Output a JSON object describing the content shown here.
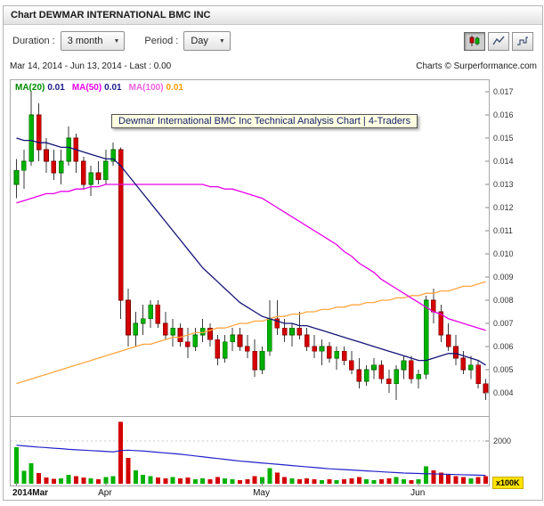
{
  "header": {
    "title": "Chart DEWMAR INTERNATIONAL BMC INC"
  },
  "controls": {
    "duration_label": "Duration :",
    "duration_value": "3 month",
    "period_label": "Period :",
    "period_value": "Day"
  },
  "info_bar": {
    "range_text": "Mar 14, 2014 - Jun 13, 2014 - Last : 0.00",
    "copyright": "Charts © Surperformance.com"
  },
  "tooltip": {
    "text": "Dewmar International BMC Inc Technical Analysis Chart | 4-Traders"
  },
  "legend": {
    "items": [
      {
        "label": "MA(20)",
        "value": "0.01",
        "label_color": "#008a00",
        "value_color": "#1a1a8c"
      },
      {
        "label": "MA(50)",
        "value": "0.01",
        "label_color": "#e800e8",
        "value_color": "#1a1a8c"
      },
      {
        "label": "MA(100)",
        "value": "0.01",
        "label_color": "#f060e0",
        "value_color": "#ff9900"
      }
    ]
  },
  "chart_data": {
    "type": "candlestick",
    "title": "Dewmar International BMC Inc Technical Analysis Chart",
    "date_range": "Mar 14, 2014 - Jun 13, 2014",
    "last": "0.00",
    "y_axis": {
      "min": 0.003,
      "max": 0.0175,
      "ticks": [
        "0.017",
        "0.016",
        "0.015",
        "0.014",
        "0.013",
        "0.012",
        "0.011",
        "0.010",
        "0.009",
        "0.008",
        "0.007",
        "0.006",
        "0.005",
        "0.004"
      ]
    },
    "x_axis": {
      "ticks": [
        {
          "label": "2014Mar",
          "index": 0,
          "bold": true
        },
        {
          "label": "Apr",
          "index": 12
        },
        {
          "label": "May",
          "index": 33
        },
        {
          "label": "Jun",
          "index": 54
        }
      ]
    },
    "colors": {
      "up": "#00b200",
      "up_border": "#006600",
      "down": "#d40000",
      "down_border": "#7a0000",
      "wick": "#3a3a3a"
    },
    "candles": [
      [
        0.013,
        0.0141,
        0.0124,
        0.0136
      ],
      [
        0.0136,
        0.0145,
        0.0128,
        0.014
      ],
      [
        0.014,
        0.017,
        0.0138,
        0.016
      ],
      [
        0.016,
        0.0165,
        0.014,
        0.0145
      ],
      [
        0.0145,
        0.015,
        0.0135,
        0.014
      ],
      [
        0.014,
        0.0145,
        0.0132,
        0.0135
      ],
      [
        0.0135,
        0.0145,
        0.013,
        0.014
      ],
      [
        0.014,
        0.0155,
        0.0138,
        0.015
      ],
      [
        0.015,
        0.0152,
        0.0135,
        0.014
      ],
      [
        0.014,
        0.0142,
        0.0128,
        0.013
      ],
      [
        0.013,
        0.0138,
        0.0125,
        0.0135
      ],
      [
        0.0135,
        0.014,
        0.013,
        0.0132
      ],
      [
        0.0132,
        0.0145,
        0.013,
        0.014
      ],
      [
        0.014,
        0.0148,
        0.0138,
        0.0145
      ],
      [
        0.0145,
        0.0146,
        0.0072,
        0.008
      ],
      [
        0.008,
        0.0085,
        0.006,
        0.0065
      ],
      [
        0.0065,
        0.0075,
        0.006,
        0.007
      ],
      [
        0.007,
        0.0078,
        0.0065,
        0.0072
      ],
      [
        0.0072,
        0.008,
        0.0068,
        0.0078
      ],
      [
        0.0078,
        0.008,
        0.0068,
        0.007
      ],
      [
        0.007,
        0.0075,
        0.0063,
        0.0065
      ],
      [
        0.0065,
        0.0072,
        0.006,
        0.0068
      ],
      [
        0.0068,
        0.007,
        0.006,
        0.0062
      ],
      [
        0.0062,
        0.0068,
        0.0055,
        0.006
      ],
      [
        0.006,
        0.0068,
        0.0058,
        0.0065
      ],
      [
        0.0065,
        0.0072,
        0.0062,
        0.0068
      ],
      [
        0.0068,
        0.007,
        0.006,
        0.0063
      ],
      [
        0.0063,
        0.0065,
        0.0052,
        0.0055
      ],
      [
        0.0055,
        0.0065,
        0.0053,
        0.0062
      ],
      [
        0.0062,
        0.0068,
        0.0058,
        0.0065
      ],
      [
        0.0065,
        0.0068,
        0.0058,
        0.006
      ],
      [
        0.006,
        0.0065,
        0.0055,
        0.0058
      ],
      [
        0.0058,
        0.0063,
        0.0047,
        0.005
      ],
      [
        0.005,
        0.006,
        0.0048,
        0.0058
      ],
      [
        0.0058,
        0.008,
        0.0056,
        0.0072
      ],
      [
        0.0072,
        0.008,
        0.0065,
        0.0068
      ],
      [
        0.0068,
        0.0072,
        0.0062,
        0.0065
      ],
      [
        0.0065,
        0.007,
        0.006,
        0.0068
      ],
      [
        0.0068,
        0.0075,
        0.0063,
        0.0065
      ],
      [
        0.0065,
        0.0068,
        0.0058,
        0.006
      ],
      [
        0.006,
        0.0065,
        0.0055,
        0.0058
      ],
      [
        0.0058,
        0.0063,
        0.0052,
        0.006
      ],
      [
        0.006,
        0.0062,
        0.0053,
        0.0055
      ],
      [
        0.0055,
        0.006,
        0.005,
        0.0058
      ],
      [
        0.0058,
        0.006,
        0.0052,
        0.0054
      ],
      [
        0.0054,
        0.0058,
        0.0048,
        0.005
      ],
      [
        0.005,
        0.0055,
        0.0042,
        0.0045
      ],
      [
        0.0045,
        0.0052,
        0.0043,
        0.005
      ],
      [
        0.005,
        0.0055,
        0.0046,
        0.0052
      ],
      [
        0.0052,
        0.0054,
        0.0044,
        0.0046
      ],
      [
        0.0046,
        0.005,
        0.004,
        0.0044
      ],
      [
        0.0044,
        0.0052,
        0.0037,
        0.005
      ],
      [
        0.005,
        0.0056,
        0.0046,
        0.0054
      ],
      [
        0.0054,
        0.0056,
        0.0044,
        0.0046
      ],
      [
        0.0046,
        0.005,
        0.0042,
        0.0048
      ],
      [
        0.0048,
        0.0082,
        0.0046,
        0.008
      ],
      [
        0.008,
        0.0085,
        0.007,
        0.0075
      ],
      [
        0.0075,
        0.0078,
        0.0062,
        0.0065
      ],
      [
        0.0065,
        0.007,
        0.0058,
        0.006
      ],
      [
        0.006,
        0.0065,
        0.0052,
        0.0055
      ],
      [
        0.0055,
        0.0058,
        0.0048,
        0.005
      ],
      [
        0.005,
        0.0056,
        0.0046,
        0.0052
      ],
      [
        0.0052,
        0.0054,
        0.0042,
        0.0044
      ],
      [
        0.0044,
        0.0046,
        0.0037,
        0.004
      ]
    ],
    "volumes": [
      1700,
      600,
      950,
      500,
      300,
      220,
      260,
      420,
      360,
      300,
      260,
      200,
      320,
      360,
      2900,
      1200,
      620,
      420,
      360,
      300,
      260,
      320,
      260,
      300,
      210,
      260,
      210,
      320,
      260,
      210,
      160,
      210,
      360,
      310,
      720,
      520,
      310,
      260,
      210,
      260,
      210,
      160,
      210,
      160,
      210,
      260,
      310,
      210,
      160,
      210,
      260,
      310,
      210,
      160,
      210,
      820,
      620,
      520,
      420,
      360,
      310,
      260,
      310,
      360
    ],
    "series": [
      {
        "name": "MA(20)",
        "color": "#141478",
        "width": 1.3,
        "values": [
          0.015,
          0.0149,
          0.0149,
          0.0148,
          0.0148,
          0.0147,
          0.0146,
          0.0146,
          0.0145,
          0.0144,
          0.0143,
          0.0142,
          0.0141,
          0.0141,
          0.0138,
          0.0134,
          0.013,
          0.0126,
          0.0122,
          0.0118,
          0.0114,
          0.011,
          0.0106,
          0.0102,
          0.0098,
          0.0094,
          0.0091,
          0.0088,
          0.0085,
          0.0082,
          0.0079,
          0.0077,
          0.0075,
          0.0073,
          0.0072,
          0.0071,
          0.007,
          0.007,
          0.0069,
          0.0069,
          0.0068,
          0.0067,
          0.0066,
          0.0065,
          0.0064,
          0.0063,
          0.0062,
          0.0061,
          0.006,
          0.0059,
          0.0058,
          0.0057,
          0.0056,
          0.0055,
          0.0054,
          0.0054,
          0.0055,
          0.0056,
          0.0057,
          0.0057,
          0.0056,
          0.0055,
          0.0054,
          0.0052
        ]
      },
      {
        "name": "MA(50)",
        "color": "#e800e8",
        "width": 1.3,
        "values": [
          0.0122,
          0.0123,
          0.0124,
          0.0125,
          0.0126,
          0.0126,
          0.0127,
          0.0127,
          0.0128,
          0.0128,
          0.0129,
          0.0129,
          0.013,
          0.013,
          0.013,
          0.013,
          0.013,
          0.013,
          0.013,
          0.013,
          0.013,
          0.013,
          0.013,
          0.013,
          0.013,
          0.013,
          0.0129,
          0.0129,
          0.0128,
          0.0128,
          0.0127,
          0.0126,
          0.0125,
          0.0124,
          0.0122,
          0.012,
          0.0118,
          0.0116,
          0.0114,
          0.0112,
          0.011,
          0.0108,
          0.0106,
          0.0104,
          0.0101,
          0.0099,
          0.0096,
          0.0094,
          0.0092,
          0.0089,
          0.0087,
          0.0085,
          0.0083,
          0.0081,
          0.0079,
          0.0077,
          0.0075,
          0.0074,
          0.0072,
          0.0071,
          0.007,
          0.0069,
          0.0068,
          0.0067
        ]
      },
      {
        "name": "MA(100)",
        "color": "#ffa640",
        "width": 1.3,
        "values": [
          0.0044,
          0.0045,
          0.0046,
          0.0047,
          0.0048,
          0.0049,
          0.005,
          0.0051,
          0.0052,
          0.0053,
          0.0054,
          0.0055,
          0.0056,
          0.0057,
          0.0058,
          0.0059,
          0.006,
          0.0061,
          0.0061,
          0.0062,
          0.0063,
          0.0064,
          0.0064,
          0.0065,
          0.0066,
          0.0066,
          0.0067,
          0.0068,
          0.0068,
          0.0069,
          0.007,
          0.007,
          0.0071,
          0.0071,
          0.0072,
          0.0073,
          0.0073,
          0.0074,
          0.0074,
          0.0075,
          0.0075,
          0.0076,
          0.0076,
          0.0077,
          0.0077,
          0.0078,
          0.0078,
          0.0079,
          0.0079,
          0.008,
          0.008,
          0.0081,
          0.0081,
          0.0082,
          0.0082,
          0.0083,
          0.0083,
          0.0084,
          0.0084,
          0.0085,
          0.0086,
          0.0086,
          0.0087,
          0.0088
        ]
      }
    ],
    "volume_ma": {
      "name": "Volume MA",
      "color": "#2222cc",
      "values": [
        1800,
        1770,
        1740,
        1710,
        1690,
        1660,
        1640,
        1610,
        1590,
        1570,
        1550,
        1530,
        1510,
        1490,
        1550,
        1570,
        1550,
        1530,
        1500,
        1470,
        1440,
        1410,
        1380,
        1340,
        1300,
        1260,
        1220,
        1180,
        1140,
        1100,
        1060,
        1030,
        1000,
        970,
        940,
        910,
        880,
        850,
        820,
        790,
        760,
        730,
        700,
        680,
        660,
        640,
        620,
        600,
        580,
        560,
        540,
        520,
        500,
        490,
        480,
        470,
        460,
        450,
        440,
        430,
        420,
        410,
        400,
        390
      ]
    },
    "volume_axis": {
      "max": 3000,
      "gridline": 2000,
      "label": "2000",
      "unit_label": "x100K"
    }
  }
}
